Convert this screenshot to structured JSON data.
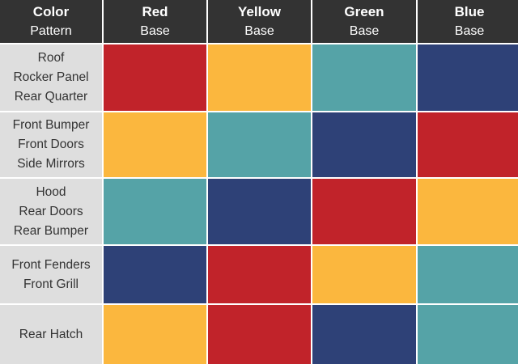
{
  "header": [
    [
      "Color",
      "Pattern"
    ],
    [
      "Red",
      "Base"
    ],
    [
      "Yellow",
      "Base"
    ],
    [
      "Green",
      "Base"
    ],
    [
      "Blue",
      "Base"
    ]
  ],
  "rows": [
    {
      "labels": [
        "Roof",
        "Rocker Panel",
        "Rear Quarter"
      ],
      "colors": [
        "#c1232a",
        "#fbb73e",
        "#55a3a7",
        "#2e4177"
      ]
    },
    {
      "labels": [
        "Front Bumper",
        "Front Doors",
        "Side Mirrors"
      ],
      "colors": [
        "#fbb73e",
        "#55a3a7",
        "#2e4177",
        "#c1232a"
      ]
    },
    {
      "labels": [
        "Hood",
        "Rear Doors",
        "Rear Bumper"
      ],
      "colors": [
        "#55a3a7",
        "#2e4177",
        "#c1232a",
        "#fbb73e"
      ]
    },
    {
      "labels": [
        "Front Fenders",
        "Front Grill"
      ],
      "colors": [
        "#2e4177",
        "#c1232a",
        "#fbb73e",
        "#55a3a7"
      ]
    },
    {
      "labels": [
        "Rear Hatch"
      ],
      "colors": [
        "#fbb73e",
        "#c1232a",
        "#2e4177",
        "#55a3a7"
      ]
    }
  ]
}
